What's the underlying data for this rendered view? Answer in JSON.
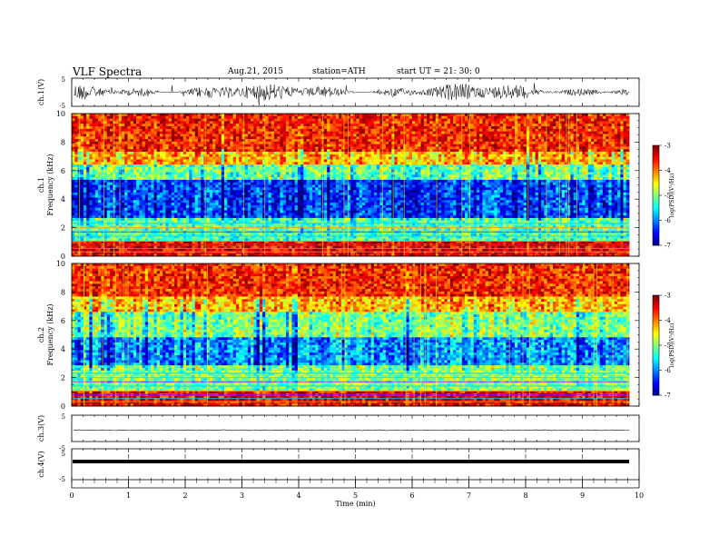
{
  "header": {
    "title": "VLF  Spectra",
    "date": "Aug.21, 2015",
    "station": "station=ATH",
    "start": "start  UT  =    21: 30: 0"
  },
  "chart_data": [
    {
      "type": "line",
      "panel": "ch1-waveform",
      "ylabel": "ch.1(V)",
      "ylim": [
        -5,
        5
      ],
      "yticks": [
        "5",
        "-5"
      ],
      "xlim": [
        0,
        10
      ],
      "series": [
        {
          "color": "#000000"
        }
      ]
    },
    {
      "type": "heatmap",
      "panel": "ch1-spectrogram",
      "ylabel": "ch.1\nFrequency  (kHz)",
      "ylim": [
        0,
        10
      ],
      "yticks": [
        "0",
        "2",
        "4",
        "6",
        "8",
        "10"
      ],
      "xlim": [
        0,
        9.8
      ],
      "colorbar": {
        "label": "log(PSD)(V²/Hz)",
        "range": [
          -7,
          -3
        ],
        "ticks": [
          "-3",
          "-4",
          "-5",
          "-6",
          "-7"
        ]
      },
      "bands": [
        {
          "f": [
            0,
            1.0
          ],
          "level": -3.4
        },
        {
          "f": [
            1.0,
            2.6
          ],
          "level": -5.2
        },
        {
          "f": [
            2.6,
            5.4
          ],
          "level": -6.3
        },
        {
          "f": [
            5.4,
            6.4
          ],
          "level": -5.1
        },
        {
          "f": [
            6.4,
            7.4
          ],
          "level": -4.2
        },
        {
          "f": [
            7.4,
            10
          ],
          "level": -3.6
        }
      ]
    },
    {
      "type": "heatmap",
      "panel": "ch2-spectrogram",
      "ylabel": "ch.2\nFrequency  (kHz)",
      "ylim": [
        0,
        10
      ],
      "yticks": [
        "0",
        "2",
        "4",
        "6",
        "8",
        "10"
      ],
      "xlim": [
        0,
        9.8
      ],
      "colorbar": {
        "label": "log(PSD)(V²/Hz)",
        "range": [
          -7,
          -3
        ],
        "ticks": [
          "-3",
          "-4",
          "-5",
          "-6",
          "-7"
        ]
      },
      "bands": [
        {
          "f": [
            0,
            1.0
          ],
          "level": -3.4
        },
        {
          "f": [
            1.0,
            2.8
          ],
          "level": -5.0
        },
        {
          "f": [
            2.8,
            4.8
          ],
          "level": -5.9
        },
        {
          "f": [
            4.8,
            6.6
          ],
          "level": -5.0
        },
        {
          "f": [
            6.6,
            7.6
          ],
          "level": -4.2
        },
        {
          "f": [
            7.6,
            10
          ],
          "level": -3.6
        }
      ]
    },
    {
      "type": "line",
      "panel": "ch3-waveform",
      "ylabel": "ch.3(V)",
      "ylim": [
        -5,
        5
      ],
      "yticks": [
        "5"
      ],
      "xlim": [
        0,
        10
      ],
      "series": [
        {
          "color": "#000000"
        }
      ]
    },
    {
      "type": "line",
      "panel": "ch4-waveform",
      "ylabel": "ch.4(V)",
      "ylim": [
        -5,
        5
      ],
      "yticks": [
        "-5",
        "5",
        "-5"
      ],
      "xlim": [
        0,
        10
      ],
      "series": [
        {
          "color": "#000000"
        }
      ],
      "xlabel": "Time  (min)",
      "xticks": [
        "0",
        "1",
        "2",
        "3",
        "4",
        "5",
        "6",
        "7",
        "8",
        "9",
        "10"
      ]
    }
  ]
}
